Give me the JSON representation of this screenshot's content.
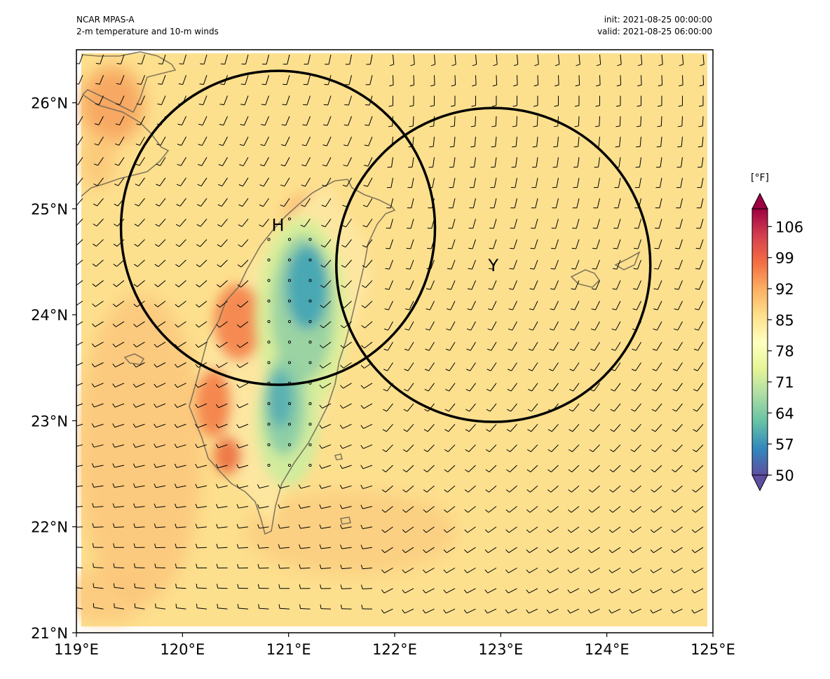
{
  "header": {
    "model": "NCAR MPAS-A",
    "product": "2-m temperature and 10-m winds",
    "init": "init: 2021-08-25 00:00:00",
    "valid": "valid: 2021-08-25 06:00:00"
  },
  "map": {
    "extent": {
      "lon": [
        119,
        125
      ],
      "lat": [
        21,
        26.5
      ]
    },
    "x_ticks": [
      {
        "value": 119,
        "label": "119°E"
      },
      {
        "value": 120,
        "label": "120°E"
      },
      {
        "value": 121,
        "label": "121°E"
      },
      {
        "value": 122,
        "label": "122°E"
      },
      {
        "value": 123,
        "label": "123°E"
      },
      {
        "value": 124,
        "label": "124°E"
      },
      {
        "value": 125,
        "label": "125°E"
      }
    ],
    "y_ticks": [
      {
        "value": 21,
        "label": "21°N"
      },
      {
        "value": 22,
        "label": "22°N"
      },
      {
        "value": 23,
        "label": "23°N"
      },
      {
        "value": 24,
        "label": "24°N"
      },
      {
        "value": 25,
        "label": "25°N"
      },
      {
        "value": 26,
        "label": "26°N"
      }
    ],
    "markers": [
      {
        "label": "H",
        "lon": 120.9,
        "lat": 24.85
      },
      {
        "label": "Y",
        "lon": 122.93,
        "lat": 24.47
      }
    ],
    "circles": [
      {
        "center_lon": 120.9,
        "center_lat": 24.82,
        "radius_deg": 1.48
      },
      {
        "center_lon": 122.93,
        "center_lat": 24.47,
        "radius_deg": 1.48
      }
    ],
    "background_color": "#fde08e",
    "coastline_color": "#6e6552"
  },
  "colorbar": {
    "unit": "[°F]",
    "range": [
      50,
      110
    ],
    "ticks": [
      "50",
      "57",
      "64",
      "71",
      "78",
      "85",
      "92",
      "99",
      "106"
    ],
    "colors": [
      "#5e4fa2",
      "#3288bd",
      "#66c2a5",
      "#abdda4",
      "#e6f598",
      "#ffffbf",
      "#fee08b",
      "#fdae61",
      "#f46d43",
      "#d53e4f",
      "#9e0142"
    ]
  },
  "chart_data": {
    "type": "heatmap",
    "title": "2-m temperature and 10-m winds",
    "xlabel": "",
    "ylabel": "",
    "xlim": [
      119,
      125
    ],
    "ylim": [
      21,
      26.5
    ],
    "value_unit": "°F",
    "value_range": [
      50,
      110
    ]
  }
}
